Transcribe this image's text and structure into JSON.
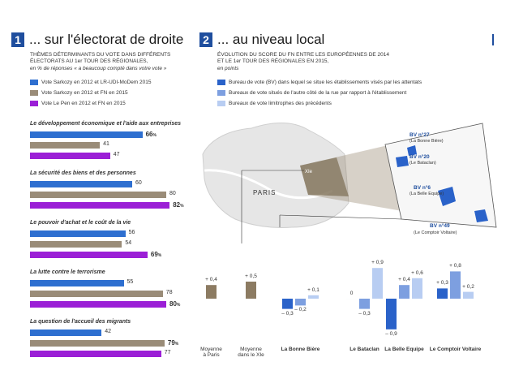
{
  "section1": {
    "number": "1",
    "title": "... sur l'électorat de droite",
    "subtitle_line1": "THÈMES DÉTERMINANTS DU VOTE DANS DIFFÉRENTS",
    "subtitle_line2": "ÉLECTORATS AU 1er TOUR DES RÉGIONALES,",
    "note": "en % de réponses « a beaucoup compté dans votre vote »"
  },
  "section2": {
    "number": "2",
    "title": "... au niveau local",
    "subtitle_line1": "ÉVOLUTION DU SCORE DU FN ENTRE LES EUROPÉENNES DE 2014",
    "subtitle_line2": "ET LE 1er TOUR DES RÉGIONALES EN 2015,",
    "note": "en points",
    "legend": [
      "Bureau de vote (BV) dans lequel se situe les établissements visés par les attentats",
      "Bureaux de vote situés de l'autre côté de la rue par rapport à l'établissement",
      "Bureaux de vote limitrophes des précédents"
    ],
    "map": {
      "paris_label": "PARIS",
      "district_label": "XIe",
      "bv": [
        {
          "label": "BV n°27",
          "place": "(La Bonne Bière)"
        },
        {
          "label": "BV n°20",
          "place": "(Le Bataclan)"
        },
        {
          "label": "BV n°6",
          "place": "(La Belle Equipe)"
        },
        {
          "label": "BV n°49",
          "place": "(Le Comptoir Voltaire)"
        }
      ]
    }
  },
  "colors": {
    "blue": "#2e6fd0",
    "gray": "#9a8c78",
    "purple": "#9b1fd6",
    "dark_blue": "#2a62c9",
    "mid_blue": "#7d9fe0",
    "light_blue": "#b8cdf2",
    "brown": "#8c7b62",
    "map_land": "#e6e6e6",
    "heading_box": "#1f4e9e"
  },
  "chart_data": [
    {
      "type": "bar",
      "orientation": "horizontal",
      "series": [
        {
          "name": "Vote Sarkozy en 2012 et LR-UDI-MoDem 2015"
        },
        {
          "name": "Vote Sarkozy en 2012 et FN en 2015"
        },
        {
          "name": "Vote Le Pen en 2012 et FN en 2015"
        }
      ],
      "categories": [
        {
          "label": "Le développement économique et l'aide aux entreprises",
          "values": [
            66,
            41,
            47
          ]
        },
        {
          "label": "La sécurité des biens et des personnes",
          "values": [
            60,
            80,
            82
          ]
        },
        {
          "label": "Le pouvoir d'achat et le coût de la vie",
          "values": [
            56,
            54,
            69
          ]
        },
        {
          "label": "La lutte contre le terrorisme",
          "values": [
            55,
            78,
            80
          ]
        },
        {
          "label": "La question de l'accueil des migrants",
          "values": [
            42,
            79,
            77
          ]
        }
      ],
      "value_labels": [
        [
          "66",
          "41",
          "47"
        ],
        [
          "60",
          "80",
          "82"
        ],
        [
          "56",
          "54",
          "69"
        ],
        [
          "55",
          "78",
          "80"
        ],
        [
          "42",
          "79",
          "77"
        ]
      ],
      "percent_sign": "%",
      "highlight": [
        [
          true,
          false,
          false
        ],
        [
          false,
          false,
          true
        ],
        [
          false,
          false,
          true
        ],
        [
          false,
          false,
          true
        ],
        [
          false,
          true,
          false
        ]
      ]
    },
    {
      "type": "bar",
      "orientation": "vertical",
      "averages": [
        {
          "label_line1": "Moyenne",
          "label_line2": "à Paris",
          "value": 0.4,
          "text": "+ 0,4"
        },
        {
          "label_line1": "Moyenne",
          "label_line2": "dans le XIe",
          "value": 0.5,
          "text": "+ 0,5"
        }
      ],
      "groups": [
        {
          "label": "La Bonne Bière",
          "values": [
            -0.3,
            -0.2,
            0.1
          ],
          "texts": [
            "– 0,3",
            "– 0,2",
            "+ 0,1"
          ]
        },
        {
          "label": "Le Bataclan",
          "values": [
            0,
            -0.3,
            0.9
          ],
          "texts": [
            "0",
            "– 0,3",
            "+ 0,9"
          ]
        },
        {
          "label": "La Belle Equipe",
          "values": [
            -0.9,
            0.4,
            0.6
          ],
          "texts": [
            "– 0,9",
            "+ 0,4",
            "+ 0,6"
          ]
        },
        {
          "label": "Le Comptoir Voltaire",
          "values": [
            0.3,
            0.8,
            0.2
          ],
          "texts": [
            "+ 0,3",
            "+ 0,8",
            "+ 0,2"
          ]
        }
      ]
    }
  ]
}
